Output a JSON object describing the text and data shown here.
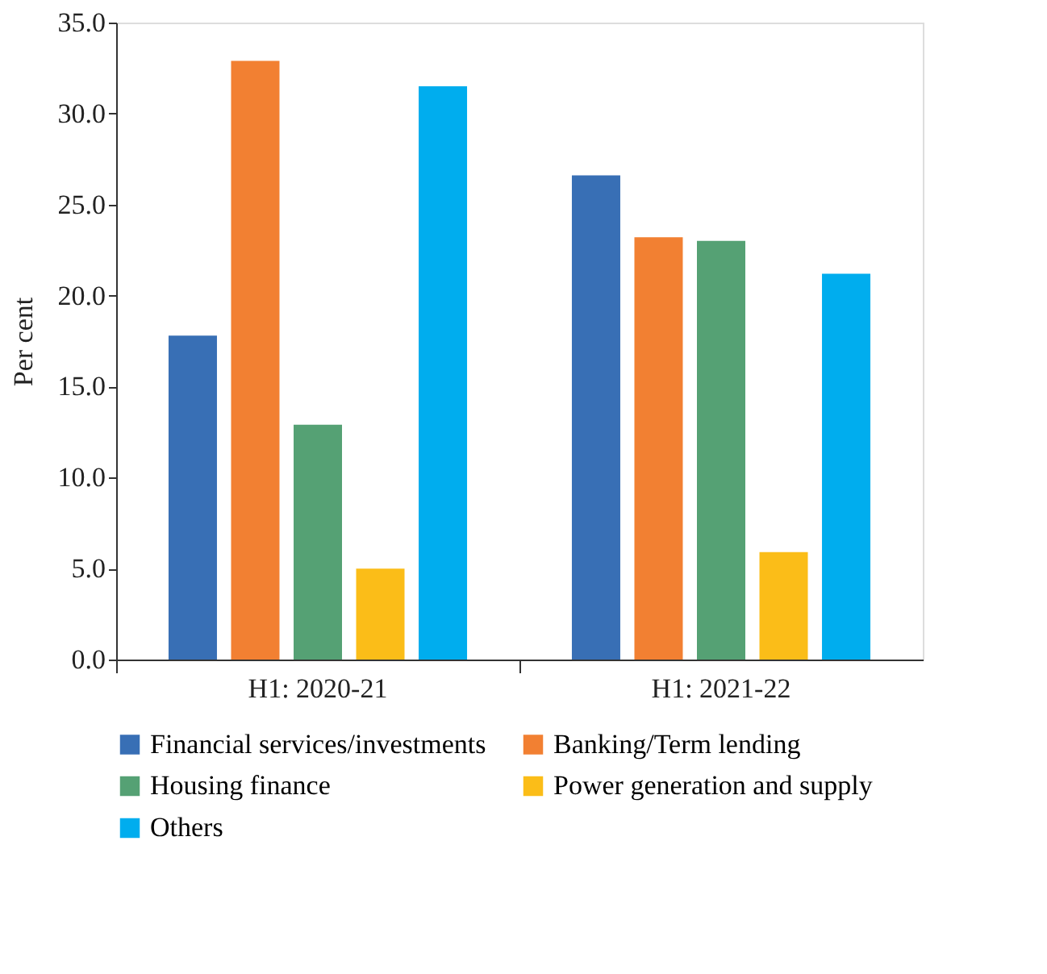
{
  "chart_data": {
    "type": "bar",
    "ylabel": "Per cent",
    "categories": [
      "H1: 2020-21",
      "H1: 2021-22"
    ],
    "series": [
      {
        "name": "Financial services/investments",
        "color": "#386fb5",
        "values": [
          17.8,
          26.6
        ]
      },
      {
        "name": "Banking/Term lending",
        "color": "#f28032",
        "values": [
          32.9,
          23.2
        ]
      },
      {
        "name": "Housing finance",
        "color": "#55a174",
        "values": [
          12.9,
          23.0
        ]
      },
      {
        "name": "Power generation and supply",
        "color": "#fbbd18",
        "values": [
          5.0,
          5.9
        ]
      },
      {
        "name": "Others",
        "color": "#00adee",
        "values": [
          31.5,
          21.2
        ]
      }
    ],
    "ylim": [
      0,
      35
    ],
    "yticks": [
      {
        "value": 0,
        "label": "0.0"
      },
      {
        "value": 5,
        "label": "5.0"
      },
      {
        "value": 10,
        "label": "10.0"
      },
      {
        "value": 15,
        "label": "15.0"
      },
      {
        "value": 20,
        "label": "20.0"
      },
      {
        "value": 25,
        "label": "25.0"
      },
      {
        "value": 30,
        "label": "30.0"
      },
      {
        "value": 35,
        "label": "35.0"
      }
    ],
    "grid": false,
    "legend": "bottom"
  }
}
